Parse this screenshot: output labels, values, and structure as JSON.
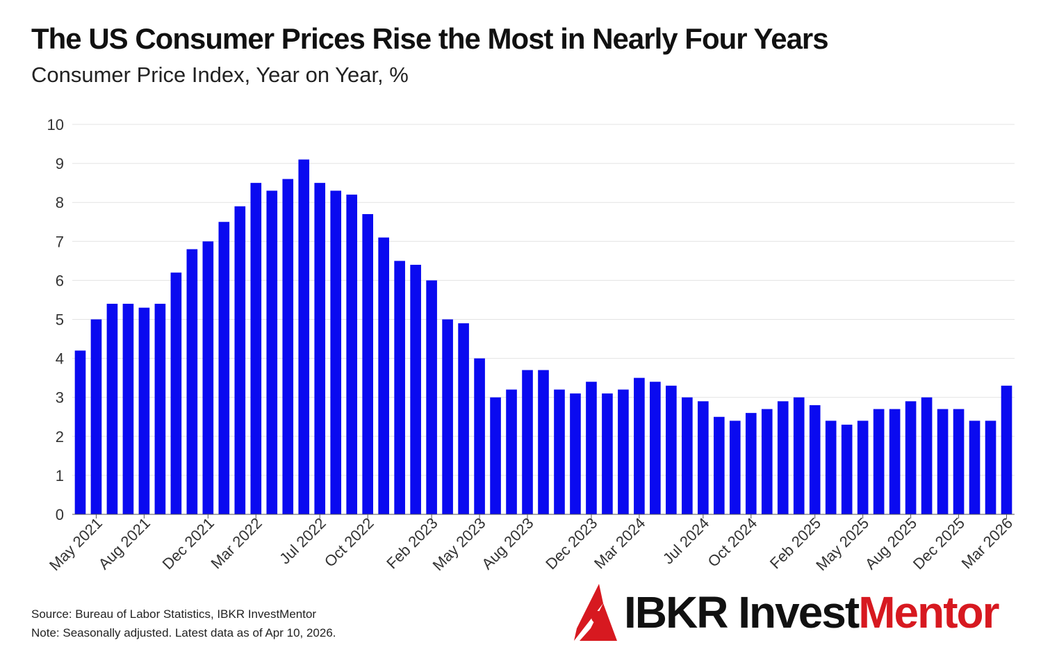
{
  "title": "The US Consumer Prices Rise the Most in Nearly Four Years",
  "subtitle": "Consumer Price Index, Year on Year, %",
  "footer": {
    "source": "Source: Bureau of Labor Statistics, IBKR InvestMentor",
    "note": "Note: Seasonally adjusted. Latest data as of Apr 10, 2026."
  },
  "logo": {
    "part1": "IBKR Invest",
    "part2": "Mentor",
    "icon": "ibkr-red-arrow-icon"
  },
  "colors": {
    "bar": "#0a0af0",
    "grid": "#e3e3e3",
    "brand_red": "#d71920"
  },
  "chart_data": {
    "type": "bar",
    "categories": [
      "Apr 2021",
      "May 2021",
      "Jun 2021",
      "Jul 2021",
      "Aug 2021",
      "Sep 2021",
      "Oct 2021",
      "Nov 2021",
      "Dec 2021",
      "Jan 2022",
      "Feb 2022",
      "Mar 2022",
      "Apr 2022",
      "May 2022",
      "Jun 2022",
      "Jul 2022",
      "Aug 2022",
      "Sep 2022",
      "Oct 2022",
      "Nov 2022",
      "Dec 2022",
      "Jan 2023",
      "Feb 2023",
      "Mar 2023",
      "Apr 2023",
      "May 2023",
      "Jun 2023",
      "Jul 2023",
      "Aug 2023",
      "Sep 2023",
      "Oct 2023",
      "Nov 2023",
      "Dec 2023",
      "Jan 2024",
      "Feb 2024",
      "Mar 2024",
      "Apr 2024",
      "May 2024",
      "Jun 2024",
      "Jul 2024",
      "Aug 2024",
      "Sep 2024",
      "Oct 2024",
      "Nov 2024",
      "Dec 2024",
      "Jan 2025",
      "Feb 2025",
      "Mar 2025",
      "Apr 2025",
      "May 2025",
      "Jun 2025",
      "Jul 2025",
      "Aug 2025",
      "Sep 2025",
      "Nov 2025",
      "Dec 2025",
      "Jan 2026",
      "Feb 2026",
      "Mar 2026"
    ],
    "values": [
      4.2,
      5.0,
      5.4,
      5.4,
      5.3,
      5.4,
      6.2,
      6.8,
      7.0,
      7.5,
      7.9,
      8.5,
      8.3,
      8.6,
      9.1,
      8.5,
      8.3,
      8.2,
      7.7,
      7.1,
      6.5,
      6.4,
      6.0,
      5.0,
      4.9,
      4.0,
      3.0,
      3.2,
      3.7,
      3.7,
      3.2,
      3.1,
      3.4,
      3.1,
      3.2,
      3.5,
      3.4,
      3.3,
      3.0,
      2.9,
      2.5,
      2.4,
      2.6,
      2.7,
      2.9,
      3.0,
      2.8,
      2.4,
      2.3,
      2.4,
      2.7,
      2.7,
      2.9,
      3.0,
      2.7,
      2.7,
      2.4,
      2.4,
      3.3
    ],
    "x_tick_labels": [
      "May 2021",
      "Aug 2021",
      "Dec 2021",
      "Mar 2022",
      "Jul 2022",
      "Oct 2022",
      "Feb 2023",
      "May 2023",
      "Aug 2023",
      "Dec 2023",
      "Mar 2024",
      "Jul 2024",
      "Oct 2024",
      "Feb 2025",
      "May 2025",
      "Aug 2025",
      "Dec 2025",
      "Mar 2026"
    ],
    "y_ticks": [
      0,
      1,
      2,
      3,
      4,
      5,
      6,
      7,
      8,
      9,
      10
    ],
    "ylim": [
      0,
      10
    ],
    "xlabel": "",
    "ylabel": "",
    "grid": "horizontal",
    "legend": "none"
  }
}
